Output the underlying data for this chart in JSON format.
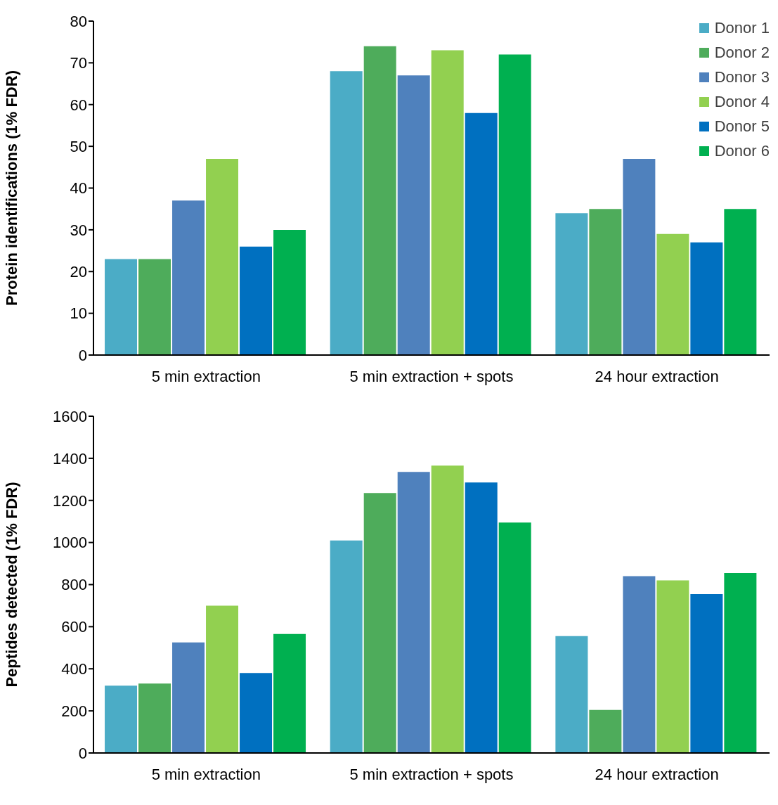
{
  "chart_data": [
    {
      "type": "bar",
      "ylabel": "Protein identifications (1% FDR)",
      "categories": [
        "5 min extraction",
        "5 min extraction + spots",
        "24 hour extraction"
      ],
      "ylim": [
        0,
        80
      ],
      "yticks": [
        0,
        10,
        20,
        30,
        40,
        50,
        60,
        70,
        80
      ],
      "grid": false,
      "legend": "top right",
      "series": [
        {
          "name": "Donor 1",
          "color": "#4bacc6",
          "values": [
            23,
            68,
            34
          ]
        },
        {
          "name": "Donor 2",
          "color": "#4eac5b",
          "values": [
            23,
            74,
            35
          ]
        },
        {
          "name": "Donor 3",
          "color": "#4f81bd",
          "values": [
            37,
            67,
            47
          ]
        },
        {
          "name": "Donor 4",
          "color": "#92d050",
          "values": [
            47,
            73,
            29
          ]
        },
        {
          "name": "Donor 5",
          "color": "#0070c0",
          "values": [
            26,
            58,
            27
          ]
        },
        {
          "name": "Donor 6",
          "color": "#00b050",
          "values": [
            30,
            72,
            35
          ]
        }
      ]
    },
    {
      "type": "bar",
      "ylabel": "Peptides detected (1% FDR)",
      "categories": [
        "5 min extraction",
        "5 min extraction + spots",
        "24 hour extraction"
      ],
      "ylim": [
        0,
        1600
      ],
      "yticks": [
        0,
        200,
        400,
        600,
        800,
        1000,
        1200,
        1400,
        1600
      ],
      "grid": false,
      "legend": false,
      "series": [
        {
          "color": "#4bacc6",
          "values": [
            320,
            1010,
            555
          ]
        },
        {
          "color": "#4eac5b",
          "values": [
            330,
            1235,
            205
          ]
        },
        {
          "color": "#4f81bd",
          "values": [
            525,
            1335,
            840
          ]
        },
        {
          "color": "#92d050",
          "values": [
            700,
            1365,
            820
          ]
        },
        {
          "color": "#0070c0",
          "values": [
            380,
            1285,
            755
          ]
        },
        {
          "color": "#00b050",
          "values": [
            565,
            1095,
            855
          ]
        }
      ]
    }
  ]
}
